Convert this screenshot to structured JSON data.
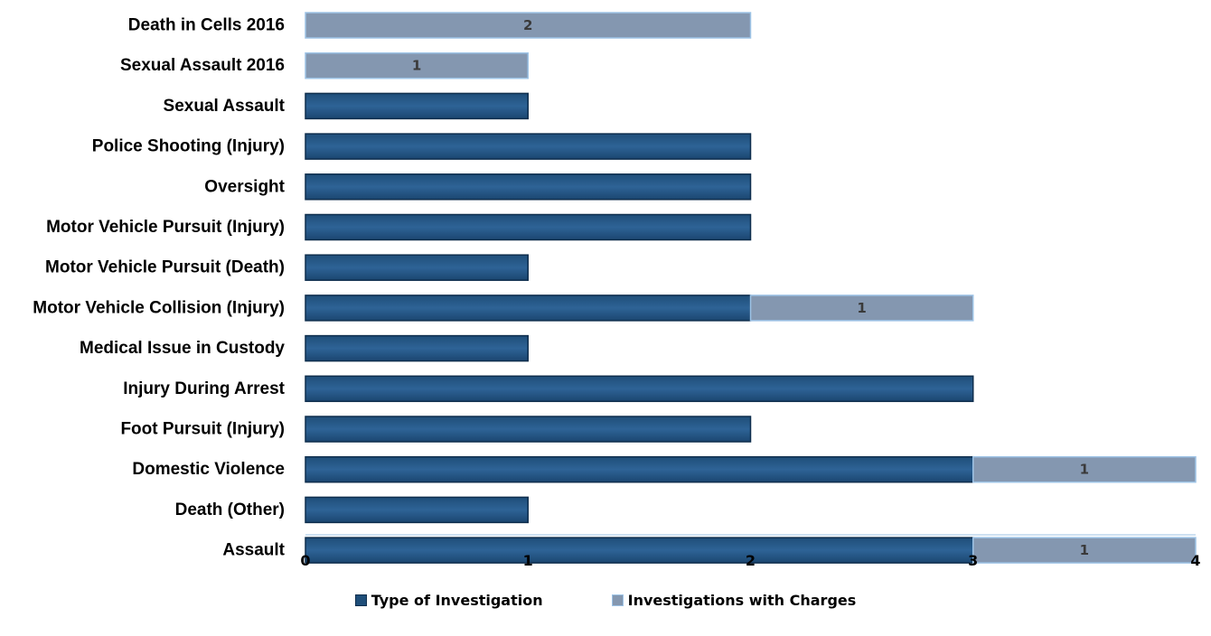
{
  "chart_data": {
    "type": "bar",
    "orientation": "horizontal",
    "stacked": true,
    "categories": [
      "Death in Cells 2016",
      "Sexual Assault 2016",
      "Sexual Assault",
      "Police Shooting (Injury)",
      "Oversight",
      "Motor Vehicle Pursuit (Injury)",
      "Motor Vehicle Pursuit (Death)",
      "Motor Vehicle Collision (Injury)",
      "Medical Issue in Custody",
      "Injury During Arrest",
      "Foot Pursuit (Injury)",
      "Domestic Violence",
      "Death (Other)",
      "Assault"
    ],
    "series": [
      {
        "name": "Type of Investigation",
        "color": "#1f4e79",
        "values": [
          0,
          0,
          1,
          2,
          2,
          2,
          1,
          2,
          1,
          3,
          2,
          3,
          1,
          3
        ]
      },
      {
        "name": "Investigations with Charges",
        "color": "#8497b0",
        "values": [
          2,
          1,
          0,
          0,
          0,
          0,
          0,
          1,
          0,
          0,
          0,
          1,
          0,
          1
        ]
      }
    ],
    "data_labels": {
      "Investigations with Charges": true
    },
    "xlim": [
      0,
      4
    ],
    "xticks": [
      "0",
      "1",
      "2",
      "3",
      "4"
    ],
    "title": "",
    "xlabel": "",
    "ylabel": "",
    "grid": false,
    "legend_position": "bottom"
  }
}
